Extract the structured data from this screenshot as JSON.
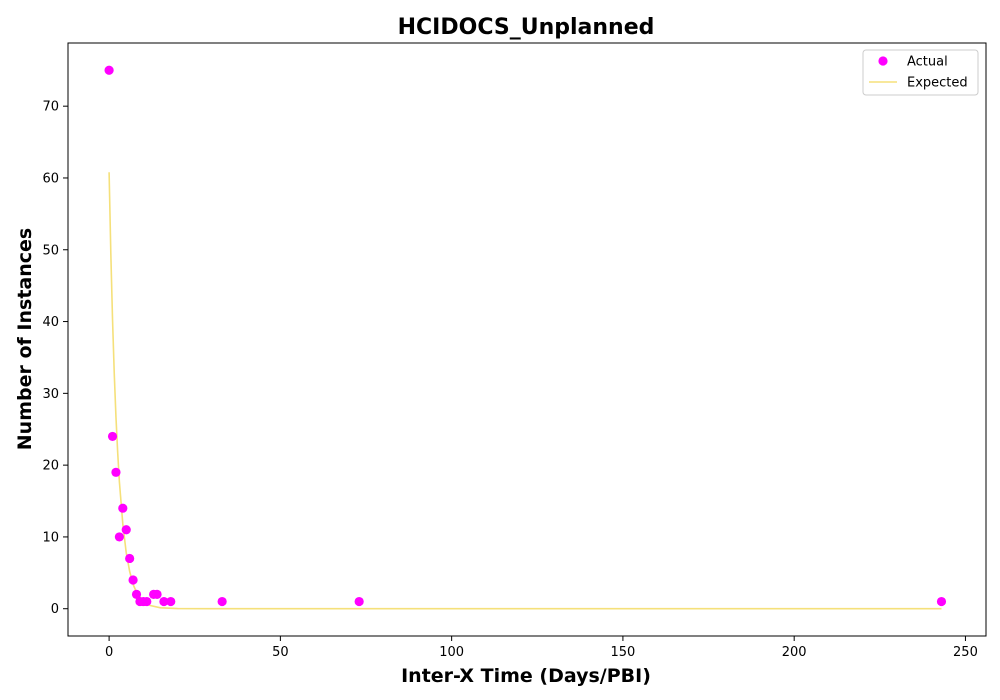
{
  "chart_data": {
    "type": "scatter",
    "title": "HCIDOCS_Unplanned",
    "xlabel": "Inter-X Time (Days/PBI)",
    "ylabel": "Number of Instances",
    "xlim": [
      -12,
      256
    ],
    "ylim": [
      -3.8,
      78.8
    ],
    "xticks": [
      0,
      50,
      100,
      150,
      200,
      250
    ],
    "yticks": [
      0,
      10,
      20,
      30,
      40,
      50,
      60,
      70
    ],
    "grid": false,
    "legend": {
      "placement": "top-right",
      "entries": [
        {
          "label": "Actual",
          "kind": "marker",
          "color": "#ff00ff"
        },
        {
          "label": "Expected",
          "kind": "line",
          "color": "#f5e07a"
        }
      ]
    },
    "series": [
      {
        "name": "Actual",
        "kind": "scatter",
        "color": "#ff00ff",
        "points": [
          {
            "x": 0,
            "y": 75
          },
          {
            "x": 1,
            "y": 24
          },
          {
            "x": 2,
            "y": 19
          },
          {
            "x": 3,
            "y": 10
          },
          {
            "x": 4,
            "y": 14
          },
          {
            "x": 5,
            "y": 11
          },
          {
            "x": 6,
            "y": 7
          },
          {
            "x": 7,
            "y": 4
          },
          {
            "x": 8,
            "y": 2
          },
          {
            "x": 9,
            "y": 1
          },
          {
            "x": 10,
            "y": 1
          },
          {
            "x": 11,
            "y": 1
          },
          {
            "x": 13,
            "y": 2
          },
          {
            "x": 14,
            "y": 2
          },
          {
            "x": 16,
            "y": 1
          },
          {
            "x": 18,
            "y": 1
          },
          {
            "x": 33,
            "y": 1
          },
          {
            "x": 73,
            "y": 1
          },
          {
            "x": 243,
            "y": 1
          }
        ]
      },
      {
        "name": "Expected",
        "kind": "line",
        "color": "#f5e07a",
        "points": [
          {
            "x": 0,
            "y": 60.8
          },
          {
            "x": 0.5,
            "y": 49.5
          },
          {
            "x": 1,
            "y": 40.3
          },
          {
            "x": 1.5,
            "y": 32.8
          },
          {
            "x": 2,
            "y": 26.7
          },
          {
            "x": 2.5,
            "y": 21.8
          },
          {
            "x": 3,
            "y": 17.7
          },
          {
            "x": 4,
            "y": 11.8
          },
          {
            "x": 5,
            "y": 7.8
          },
          {
            "x": 6,
            "y": 5.2
          },
          {
            "x": 7,
            "y": 3.4
          },
          {
            "x": 8,
            "y": 2.3
          },
          {
            "x": 10,
            "y": 1.0
          },
          {
            "x": 12,
            "y": 0.45
          },
          {
            "x": 15,
            "y": 0.13
          },
          {
            "x": 20,
            "y": 0.02
          },
          {
            "x": 30,
            "y": 0
          },
          {
            "x": 243,
            "y": 0
          }
        ]
      }
    ]
  }
}
